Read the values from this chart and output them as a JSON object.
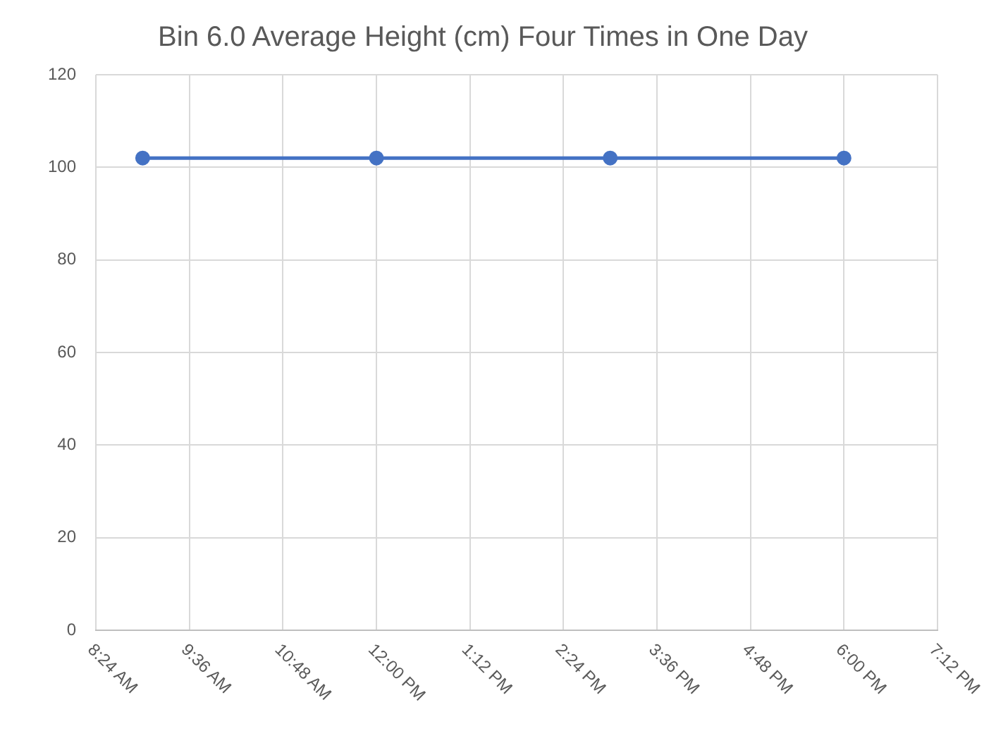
{
  "chart_data": {
    "type": "line",
    "title": "Bin 6.0 Average Height (cm) Four Times in One Day",
    "x": [
      9,
      12,
      15,
      18
    ],
    "series": [
      {
        "color": "#4472c4",
        "values": [
          102,
          102,
          102,
          102
        ]
      }
    ],
    "xlim": [
      8.4,
      19.2
    ],
    "xticks": [
      {
        "value": 8.4,
        "label": "8:24 AM"
      },
      {
        "value": 9.6,
        "label": "9:36 AM"
      },
      {
        "value": 10.8,
        "label": "10:48 AM"
      },
      {
        "value": 12,
        "label": "12:00 PM"
      },
      {
        "value": 13.2,
        "label": "1:12 PM"
      },
      {
        "value": 14.4,
        "label": "2:24 PM"
      },
      {
        "value": 15.6,
        "label": "3:36 PM"
      },
      {
        "value": 16.8,
        "label": "4:48 PM"
      },
      {
        "value": 18,
        "label": "6:00 PM"
      },
      {
        "value": 19.2,
        "label": "7:12 PM"
      }
    ],
    "ylim": [
      0,
      120
    ],
    "yticks": [
      0,
      20,
      40,
      60,
      80,
      100,
      120
    ],
    "grid": true,
    "legend": false,
    "marker": "circle",
    "line_style": "solid"
  }
}
